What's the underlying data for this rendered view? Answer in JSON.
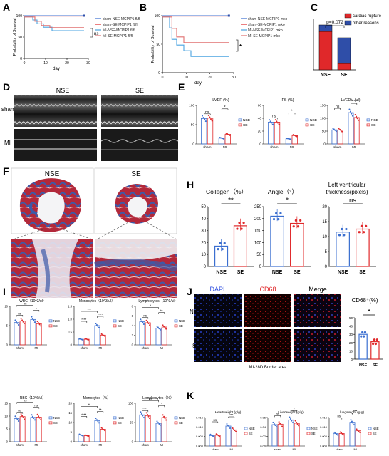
{
  "colors": {
    "blue": "#3b6fd0",
    "red": "#e0282a",
    "cyan": "#4aa3e0",
    "navy": "#2f4ea8",
    "grey": "#8a8a8a",
    "dark_red": "#b22222"
  },
  "panel_letters": {
    "A": "A",
    "B": "B",
    "C": "C",
    "D": "D",
    "E": "E",
    "F": "F",
    "H": "H",
    "I": "I",
    "J": "J",
    "K": "K"
  },
  "panelA": {
    "ylabel": "Probability of Survival",
    "xlabel": "day",
    "yticks": [
      "0",
      "50",
      "100"
    ],
    "xticks": [
      "0",
      "10",
      "20",
      "30"
    ],
    "legend": [
      "sham-NSE-MCPIP1 fl/fl",
      "sham-SE-MCPIP1 fl/fl",
      "MI-NSE-MCPIP1 fl/fl",
      "MI-SE-MCPIP1 fl/fl"
    ],
    "sig": "ns",
    "series": [
      {
        "color": "#3b6fd0",
        "steps": [
          [
            0,
            100
          ],
          [
            28,
            100
          ]
        ]
      },
      {
        "color": "#e0282a",
        "steps": [
          [
            0,
            100
          ],
          [
            28,
            100
          ]
        ]
      },
      {
        "color": "#4aa3e0",
        "steps": [
          [
            0,
            100
          ],
          [
            4,
            92
          ],
          [
            6,
            83
          ],
          [
            9,
            75
          ],
          [
            13,
            67
          ],
          [
            28,
            67
          ]
        ]
      },
      {
        "color": "#e07070",
        "steps": [
          [
            0,
            100
          ],
          [
            5,
            90
          ],
          [
            8,
            80
          ],
          [
            12,
            75
          ],
          [
            28,
            75
          ]
        ]
      }
    ]
  },
  "panelB": {
    "ylabel": "Probability of Survival",
    "xlabel": "day",
    "yticks": [
      "0",
      "50",
      "100"
    ],
    "xticks": [
      "0",
      "10",
      "20",
      "30"
    ],
    "legend": [
      "sham-NSE-MCPIP1 mko",
      "sham-SE-MCPIP1 mko",
      "MI-NSE-MCPIP1 mko",
      "MI-SE-MCPIP1 mko"
    ],
    "sig": "*",
    "series": [
      {
        "color": "#3b6fd0",
        "steps": [
          [
            0,
            100
          ],
          [
            28,
            100
          ]
        ]
      },
      {
        "color": "#e0282a",
        "steps": [
          [
            0,
            100
          ],
          [
            28,
            100
          ]
        ]
      },
      {
        "color": "#4aa3e0",
        "steps": [
          [
            0,
            100
          ],
          [
            3,
            80
          ],
          [
            4,
            60
          ],
          [
            6,
            50
          ],
          [
            9,
            40
          ],
          [
            12,
            30
          ],
          [
            28,
            30
          ]
        ]
      },
      {
        "color": "#e07070",
        "steps": [
          [
            0,
            100
          ],
          [
            4,
            80
          ],
          [
            6,
            65
          ],
          [
            9,
            55
          ],
          [
            28,
            55
          ]
        ]
      }
    ]
  },
  "panelC": {
    "pvalue": "p=0.072",
    "legend": [
      "cardiac rupture",
      "other reasons"
    ],
    "categories": [
      "NSE",
      "SE"
    ],
    "stacks": [
      {
        "rupture": 6,
        "other": 1
      },
      {
        "rupture": 1,
        "other": 4
      }
    ],
    "ymax": 8
  },
  "panelD": {
    "cols": [
      "NSE",
      "SE"
    ],
    "rows": [
      "sham",
      "MI"
    ]
  },
  "panelE": [
    {
      "title": "LVEF (%)",
      "yticks": [
        "0",
        "50",
        "100"
      ],
      "ymax": 100,
      "groups": [
        "sham",
        "MI"
      ],
      "legend": [
        "NSE",
        "SE"
      ],
      "sigs": [
        "ns",
        "*"
      ],
      "values": [
        66,
        67,
        15,
        25
      ]
    },
    {
      "title": "FS (%)",
      "yticks": [
        "0",
        "20",
        "40",
        "60"
      ],
      "ymax": 60,
      "groups": [
        "sham",
        "MI"
      ],
      "legend": [
        "NSE",
        "SE"
      ],
      "sigs": [
        "ns",
        "*"
      ],
      "values": [
        34,
        34,
        8,
        13
      ]
    },
    {
      "title": "LVEDV (ul)",
      "yticks": [
        "0",
        "50",
        "100",
        "150"
      ],
      "ymax": 150,
      "groups": [
        "sham",
        "MI"
      ],
      "legend": [
        "NSE",
        "SE"
      ],
      "sigs": [
        "ns",
        "****"
      ],
      "values": [
        55,
        54,
        122,
        103
      ]
    }
  ],
  "panelF": {
    "cols": [
      "NSE",
      "SE"
    ]
  },
  "panelH": [
    {
      "title": "Collegen（%）",
      "yticks": [
        "0",
        "10",
        "20",
        "30",
        "40",
        "50"
      ],
      "ymax": 50,
      "categories": [
        "NSE",
        "SE"
      ],
      "values": [
        17,
        34
      ],
      "sig": "**"
    },
    {
      "title": "Angle（°）",
      "yticks": [
        "0",
        "50",
        "100",
        "150",
        "200",
        "250"
      ],
      "ymax": 250,
      "categories": [
        "NSE",
        "SE"
      ],
      "values": [
        210,
        180
      ],
      "sig": "*"
    },
    {
      "title": "Left ventricular thickness(pixels)",
      "yticks": [
        "0",
        "5",
        "10",
        "15",
        "20"
      ],
      "ymax": 20,
      "categories": [
        "NSE",
        "SE"
      ],
      "values": [
        11.5,
        12.5
      ],
      "sig": "ns"
    }
  ],
  "panelI": [
    {
      "title": "WBC（10^3/ul）",
      "yticks": [
        "0",
        "5",
        "10"
      ],
      "ymax": 10,
      "values": [
        5.8,
        6.2,
        6.6,
        5.5
      ],
      "sigs": [
        "ns",
        "*",
        "ns"
      ]
    },
    {
      "title": "Monocytes（10^3/ul）",
      "yticks": [
        "0",
        "0.5",
        "1.0",
        "1.5"
      ],
      "ymax": 1.5,
      "values": [
        0.22,
        0.22,
        0.75,
        0.38
      ],
      "sigs": [
        "****",
        "****",
        "***"
      ]
    },
    {
      "title": "Lymphocytes（10^3/ul）",
      "yticks": [
        "0",
        "2",
        "4",
        "6",
        "8"
      ],
      "ymax": 8,
      "values": [
        4.8,
        4.6,
        3.5,
        3.7
      ],
      "sigs": [
        "ns",
        "**",
        "*"
      ]
    },
    {
      "title": "RBC（10^6/ul）",
      "yticks": [
        "0",
        "5",
        "10",
        "15"
      ],
      "ymax": 15,
      "values": [
        9,
        9.8,
        9.5,
        9.6
      ],
      "sigs": [
        "ns",
        "ns",
        "ns"
      ]
    },
    {
      "title": "Monocytes（%）",
      "yticks": [
        "0",
        "5",
        "10",
        "15",
        "20"
      ],
      "ymax": 20,
      "values": [
        3.5,
        3.2,
        11,
        6.5
      ],
      "sigs": [
        "****",
        "**",
        "**"
      ]
    },
    {
      "title": "Lymphocytes（%）",
      "yticks": [
        "0",
        "50",
        "100"
      ],
      "ymax": 100,
      "values": [
        70,
        68,
        48,
        63
      ],
      "sigs": [
        "****",
        "*",
        "ns"
      ]
    }
  ],
  "panelI_common": {
    "groups": [
      "sham",
      "MI"
    ],
    "legend": [
      "NSE",
      "SE"
    ]
  },
  "panelJ": {
    "cols": [
      "DAPI",
      "CD68",
      "Merge"
    ],
    "rows": [
      "NSE",
      "SE"
    ],
    "caption": "MI-28D Border area",
    "chart": {
      "title": "CD68⁺(%)",
      "yticks": [
        "0",
        "10",
        "20",
        "30",
        "40",
        "50"
      ],
      "ymax": 50,
      "categories": [
        "NSE",
        "SE"
      ],
      "values": [
        30,
        21
      ],
      "sig": "*"
    }
  },
  "panelK": [
    {
      "title": "Heartweight (g/g)",
      "yticks": [
        "0.000",
        "0.005",
        "0.010",
        "0.015"
      ],
      "ymax": 0.015,
      "values": [
        0.0055,
        0.0057,
        0.0105,
        0.0085
      ],
      "sigs": [
        "ns",
        "***"
      ]
    },
    {
      "title": "Liverweight (g/g)",
      "yticks": [
        "0.00",
        "0.02",
        "0.04",
        "0.06"
      ],
      "ymax": 0.06,
      "values": [
        0.045,
        0.046,
        0.055,
        0.048
      ],
      "sigs": [
        "ns",
        "*"
      ]
    },
    {
      "title": "lungweight (g/g)",
      "yticks": [
        "0.000",
        "0.005",
        "0.010",
        "0.015"
      ],
      "ymax": 0.015,
      "values": [
        0.0065,
        0.0066,
        0.0125,
        0.008
      ],
      "sigs": [
        "ns",
        "***"
      ]
    }
  ],
  "panelK_common": {
    "groups": [
      "sham",
      "MI"
    ],
    "legend": [
      "NSE",
      "SE"
    ]
  }
}
